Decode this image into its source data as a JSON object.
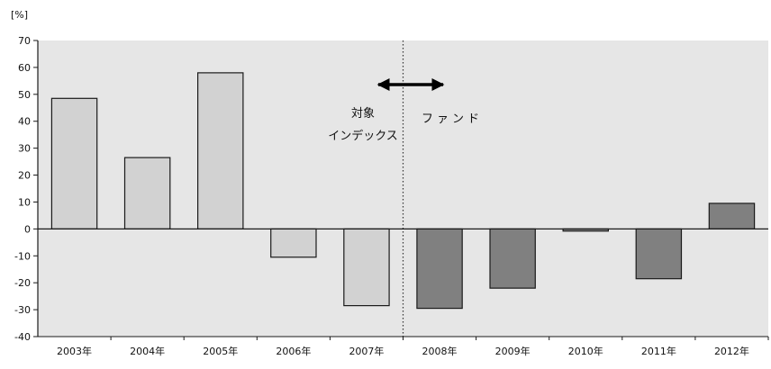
{
  "chart_data": {
    "type": "bar",
    "ylabel": "[%]",
    "ylim": [
      -40,
      70
    ],
    "yticks": [
      70,
      60,
      50,
      40,
      30,
      20,
      10,
      0,
      -10,
      -20,
      -30,
      -40
    ],
    "grid": false,
    "categories": [
      "2003年",
      "2004年",
      "2005年",
      "2006年",
      "2007年",
      "2008年",
      "2009年",
      "2010年",
      "2011年",
      "2012年"
    ],
    "values": [
      48.5,
      26.5,
      58,
      -10.5,
      -28.5,
      -29.5,
      -22,
      -0.8,
      -18.5,
      9.5
    ],
    "bar_groups": [
      "index",
      "index",
      "index",
      "index",
      "index",
      "fund",
      "fund",
      "fund",
      "fund",
      "fund"
    ],
    "colors": {
      "plot_background": "#e6e6e6",
      "index_bar": "#d2d2d2",
      "fund_bar": "#808080",
      "bar_stroke": "#1a1a1a",
      "axis": "#1a1a1a"
    },
    "annotations": {
      "index_label_line1": "対象",
      "index_label_line2": "インデックス",
      "fund_label": "ファンド",
      "divider_style": "dotted",
      "arrow": "double-headed"
    }
  }
}
